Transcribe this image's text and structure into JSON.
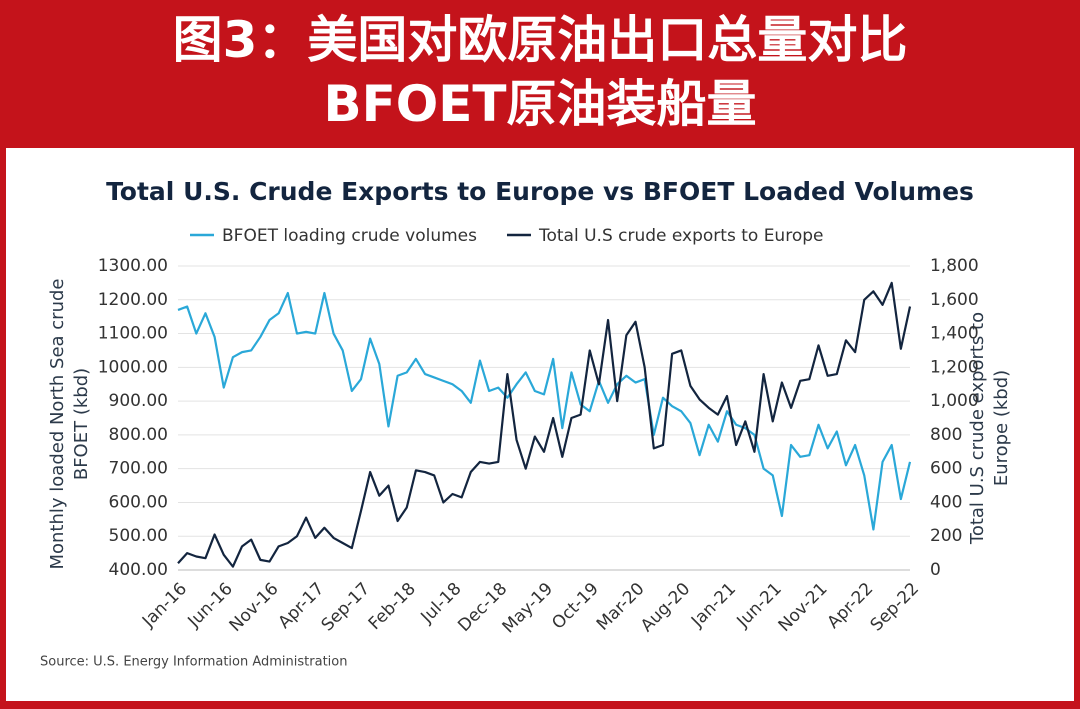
{
  "header": {
    "line1": "图3：美国对欧原油出口总量对比",
    "line2": "BFOET原油装船量"
  },
  "chart_data": {
    "type": "line",
    "title": "Total U.S. Crude Exports to Europe vs BFOET Loaded Volumes",
    "y_label": "Monthly loaded North Sea crude BFOET (kbd)",
    "y2_label": "Total U.S crude exports to Europe (kbd)",
    "source": "Source: U.S. Energy Information Administration",
    "categories": [
      "Jan-16",
      null,
      null,
      null,
      null,
      "Jun-16",
      null,
      null,
      null,
      null,
      "Nov-16",
      null,
      null,
      null,
      null,
      "Apr-17",
      null,
      null,
      null,
      null,
      "Sep-17",
      null,
      null,
      null,
      null,
      "Feb-18",
      null,
      null,
      null,
      null,
      "Jul-18",
      null,
      null,
      null,
      null,
      "Dec-18",
      null,
      null,
      null,
      null,
      "May-19",
      null,
      null,
      null,
      null,
      "Oct-19",
      null,
      null,
      null,
      null,
      "Mar-20",
      null,
      null,
      null,
      null,
      "Aug-20",
      null,
      null,
      null,
      null,
      "Jan-21",
      null,
      null,
      null,
      null,
      "Jun-21",
      null,
      null,
      null,
      null,
      "Nov-21",
      null,
      null,
      null,
      null,
      "Apr-22",
      null,
      null,
      null,
      null,
      "Sep-22"
    ],
    "series": [
      {
        "name": "BFOET loading crude volumes",
        "color": "#2aa8d8",
        "values": [
          1170,
          1180,
          1100,
          1160,
          1090,
          940,
          1030,
          1045,
          1050,
          1090,
          1140,
          1160,
          1220,
          1100,
          1105,
          1100,
          1220,
          1100,
          1050,
          930,
          965,
          1085,
          1010,
          825,
          975,
          985,
          1025,
          980,
          970,
          960,
          950,
          930,
          895,
          1020,
          930,
          940,
          910,
          950,
          985,
          930,
          920,
          1025,
          820,
          985,
          890,
          870,
          960,
          895,
          950,
          975,
          955,
          965,
          800,
          910,
          885,
          870,
          835,
          740,
          830,
          780,
          870,
          830,
          820,
          800,
          700,
          680,
          560,
          770,
          735,
          740,
          830,
          760,
          810,
          710,
          770,
          680,
          520,
          720,
          770,
          610,
          720
        ]
      },
      {
        "name": "Total U.S crude exports to Europe",
        "color": "#13253f",
        "axis": "y2",
        "values": [
          40,
          100,
          80,
          70,
          210,
          90,
          20,
          140,
          180,
          60,
          50,
          140,
          160,
          200,
          310,
          190,
          250,
          190,
          160,
          130,
          350,
          580,
          440,
          500,
          290,
          370,
          590,
          580,
          560,
          400,
          450,
          430,
          580,
          640,
          630,
          640,
          1160,
          770,
          600,
          790,
          700,
          900,
          670,
          900,
          920,
          1300,
          1100,
          1480,
          1000,
          1390,
          1470,
          1200,
          720,
          740,
          1280,
          1300,
          1090,
          1010,
          960,
          920,
          1030,
          740,
          880,
          700,
          1160,
          880,
          1110,
          960,
          1120,
          1130,
          1330,
          1150,
          1160,
          1360,
          1290,
          1600,
          1650,
          1570,
          1700,
          1310,
          1560
        ]
      }
    ],
    "ylim": [
      400,
      1300
    ],
    "yticks": [
      {
        "value": 400,
        "label": "400.00"
      },
      {
        "value": 500,
        "label": "500.00"
      },
      {
        "value": 600,
        "label": "600.00"
      },
      {
        "value": 700,
        "label": "700.00"
      },
      {
        "value": 800,
        "label": "800.00"
      },
      {
        "value": 900,
        "label": "900.00"
      },
      {
        "value": 1000,
        "label": "1000.00"
      },
      {
        "value": 1100,
        "label": "1100.00"
      },
      {
        "value": 1200,
        "label": "1200.00"
      },
      {
        "value": 1300,
        "label": "1300.00"
      }
    ],
    "y2lim": [
      0,
      1800
    ],
    "y2ticks": [
      0,
      200,
      400,
      600,
      800,
      {
        "value": 1000,
        "label": "1,000"
      },
      {
        "value": 1200,
        "label": "1,200"
      },
      {
        "value": 1400,
        "label": "1,400"
      },
      {
        "value": 1600,
        "label": "1,600"
      },
      {
        "value": 1800,
        "label": "1,800"
      }
    ],
    "grid": true
  }
}
